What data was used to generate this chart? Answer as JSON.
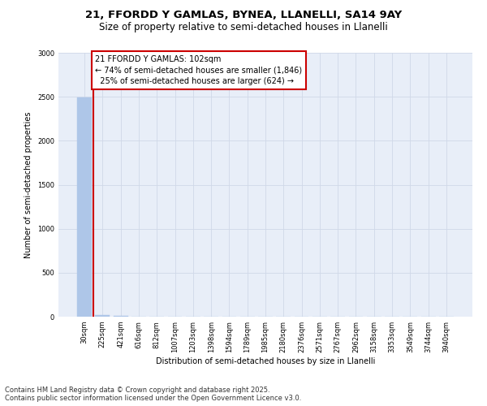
{
  "title_line1": "21, FFORDD Y GAMLAS, BYNEA, LLANELLI, SA14 9AY",
  "title_line2": "Size of property relative to semi-detached houses in Llanelli",
  "xlabel": "Distribution of semi-detached houses by size in Llanelli",
  "ylabel": "Number of semi-detached properties",
  "categories": [
    "30sqm",
    "225sqm",
    "421sqm",
    "616sqm",
    "812sqm",
    "1007sqm",
    "1203sqm",
    "1398sqm",
    "1594sqm",
    "1789sqm",
    "1985sqm",
    "2180sqm",
    "2376sqm",
    "2571sqm",
    "2767sqm",
    "2962sqm",
    "3158sqm",
    "3353sqm",
    "3549sqm",
    "3744sqm",
    "3940sqm"
  ],
  "values": [
    2490,
    22,
    5,
    2,
    1,
    1,
    1,
    1,
    1,
    1,
    1,
    1,
    1,
    1,
    1,
    1,
    1,
    1,
    1,
    1,
    1
  ],
  "bar_color": "#aec6e8",
  "bar_edge_color": "#aec6e8",
  "annotation_text": "21 FFORDD Y GAMLAS: 102sqm\n← 74% of semi-detached houses are smaller (1,846)\n  25% of semi-detached houses are larger (624) →",
  "annotation_box_color": "#ffffff",
  "annotation_box_edge_color": "#cc0000",
  "vline_color": "#cc0000",
  "ylim": [
    0,
    3000
  ],
  "yticks": [
    0,
    500,
    1000,
    1500,
    2000,
    2500,
    3000
  ],
  "grid_color": "#d0d8e8",
  "background_color": "#e8eef8",
  "footer_text": "Contains HM Land Registry data © Crown copyright and database right 2025.\nContains public sector information licensed under the Open Government Licence v3.0.",
  "title_fontsize": 9.5,
  "subtitle_fontsize": 8.5,
  "annotation_fontsize": 7,
  "footer_fontsize": 6,
  "tick_fontsize": 6,
  "axis_label_fontsize": 7
}
